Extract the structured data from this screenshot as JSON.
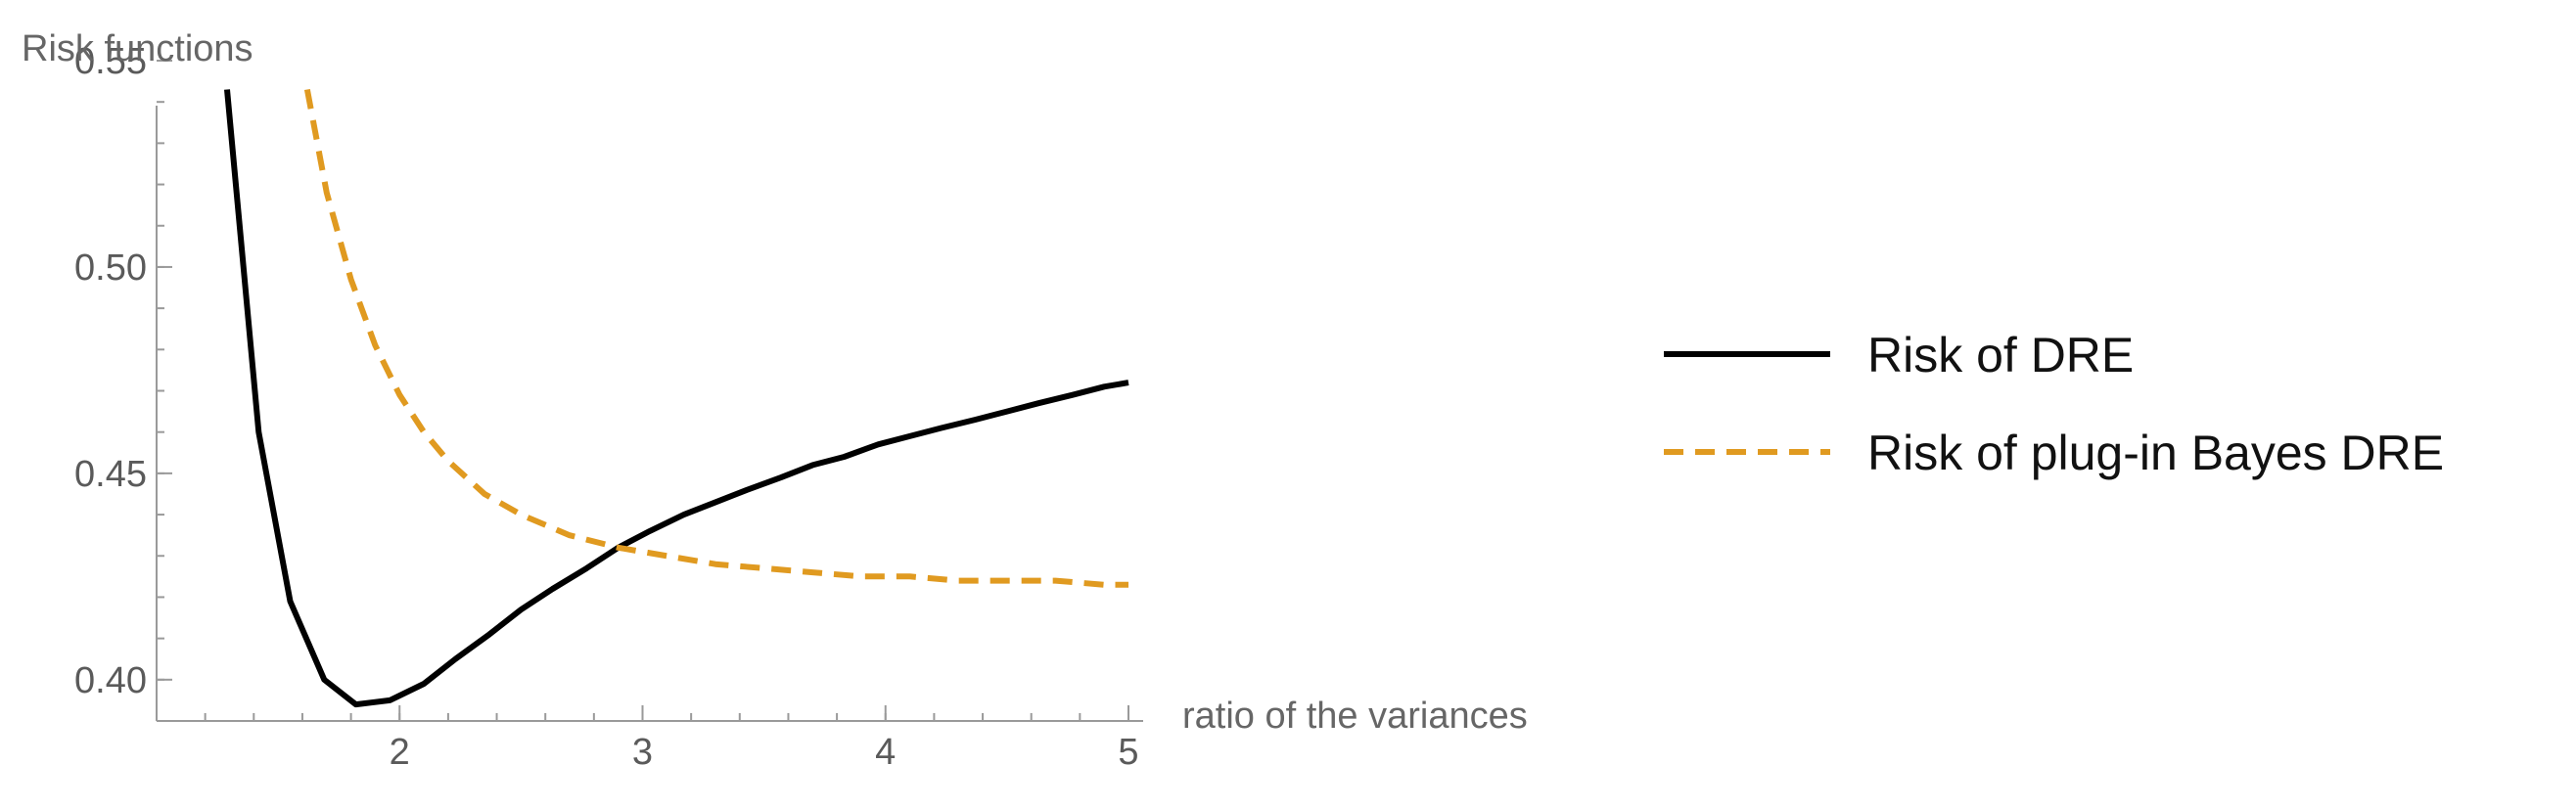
{
  "chart_data": {
    "type": "line",
    "xlabel": "ratio of the variances",
    "ylabel": "Risk functions",
    "xlim": [
      1.0,
      5.0
    ],
    "ylim": [
      0.39,
      0.55
    ],
    "x_ticks": [
      "2",
      "3",
      "4",
      "5"
    ],
    "x_tick_values": [
      2,
      3,
      4,
      5
    ],
    "y_ticks": [
      "0.40",
      "0.45",
      "0.50",
      "0.55"
    ],
    "y_tick_values": [
      0.4,
      0.45,
      0.5,
      0.55
    ],
    "grid": false,
    "legend_position": "right",
    "series": [
      {
        "name": "Risk of DRE",
        "color": "#000000",
        "style": "solid",
        "x": [
          1.29,
          1.42,
          1.55,
          1.69,
          1.82,
          1.96,
          2.1,
          2.23,
          2.37,
          2.5,
          2.63,
          2.77,
          2.9,
          3.03,
          3.17,
          3.3,
          3.43,
          3.57,
          3.7,
          3.83,
          3.97,
          4.1,
          4.23,
          4.37,
          4.5,
          4.63,
          4.77,
          4.9,
          5.0
        ],
        "y": [
          0.543,
          0.46,
          0.419,
          0.4,
          0.394,
          0.395,
          0.399,
          0.405,
          0.411,
          0.417,
          0.422,
          0.427,
          0.432,
          0.436,
          0.44,
          0.443,
          0.446,
          0.449,
          0.452,
          0.454,
          0.457,
          0.459,
          0.461,
          0.463,
          0.465,
          0.467,
          0.469,
          0.471,
          0.472
        ]
      },
      {
        "name": "Risk of plug-in Bayes DRE",
        "color": "#e09a20",
        "style": "dashed",
        "x": [
          1.62,
          1.7,
          1.8,
          1.9,
          2.0,
          2.1,
          2.2,
          2.35,
          2.5,
          2.7,
          2.9,
          3.1,
          3.3,
          3.5,
          3.7,
          3.9,
          4.1,
          4.3,
          4.5,
          4.7,
          4.9,
          5.0
        ],
        "y": [
          0.543,
          0.518,
          0.497,
          0.481,
          0.469,
          0.46,
          0.453,
          0.445,
          0.44,
          0.435,
          0.432,
          0.43,
          0.428,
          0.427,
          0.426,
          0.425,
          0.425,
          0.424,
          0.424,
          0.424,
          0.423,
          0.423
        ]
      }
    ]
  }
}
